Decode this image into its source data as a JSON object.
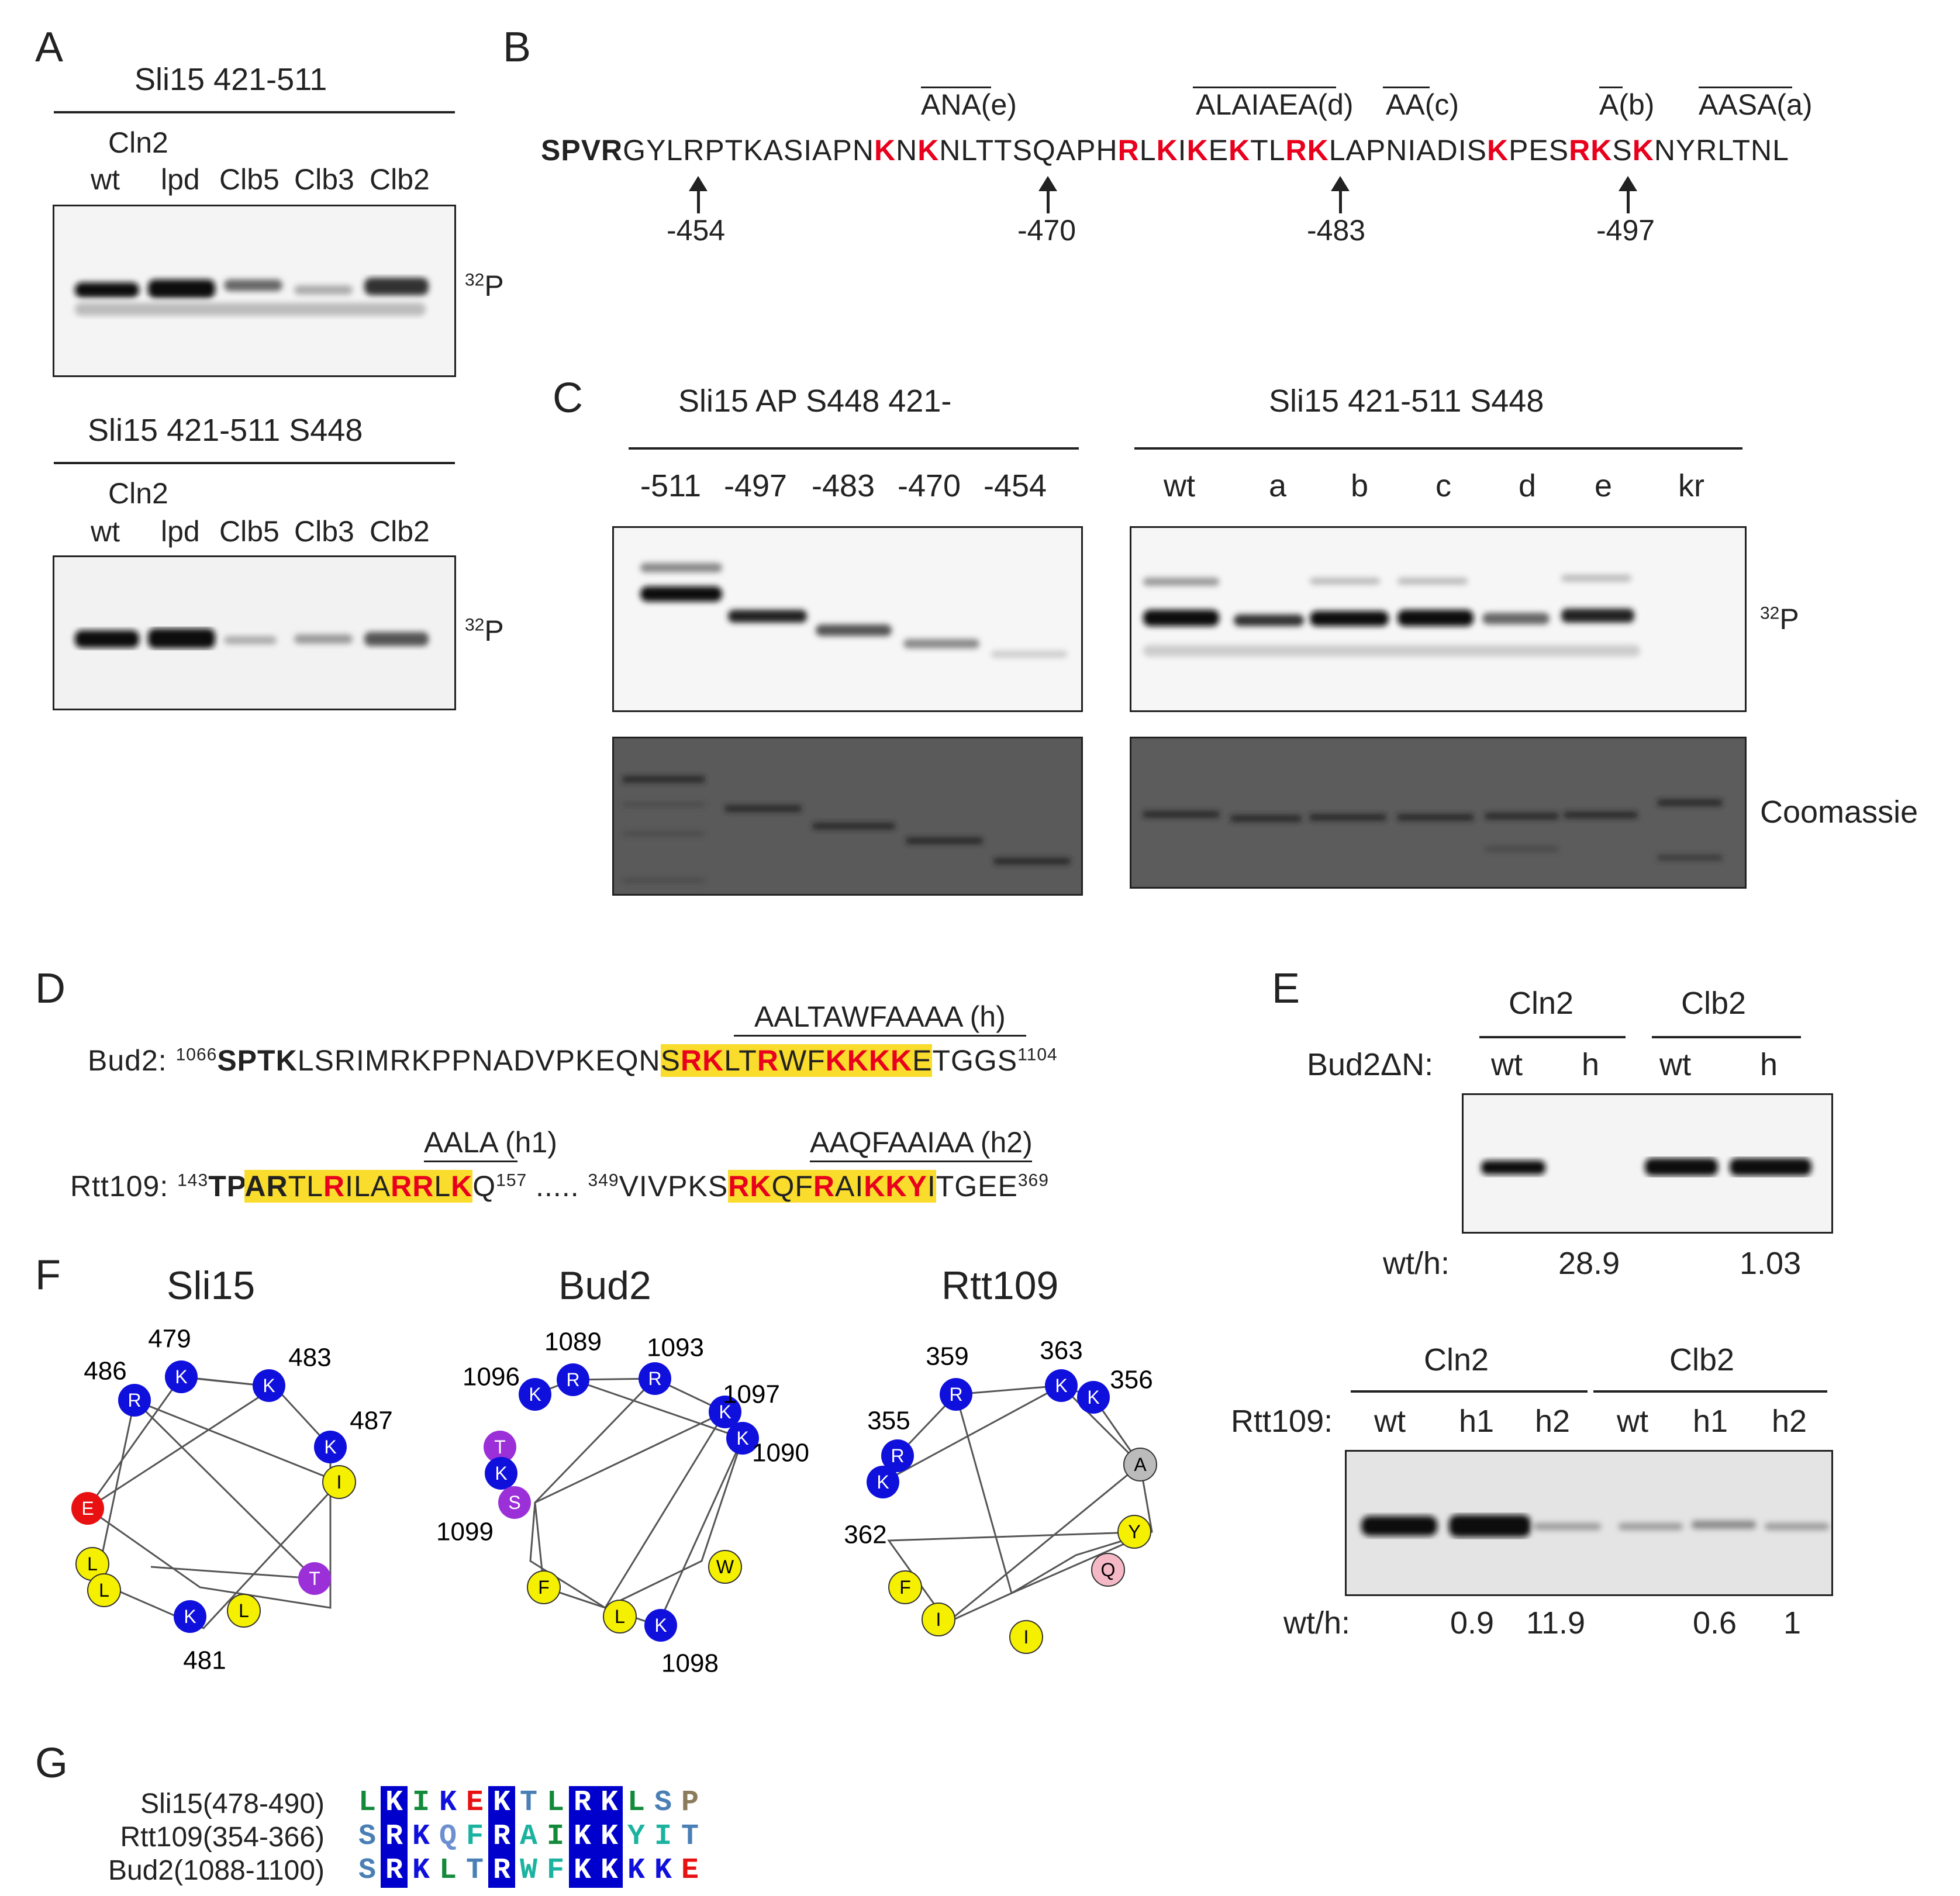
{
  "panels": {
    "A": "A",
    "B": "B",
    "C": "C",
    "D": "D",
    "E": "E",
    "F": "F",
    "G": "G"
  },
  "panelA": {
    "top_title": "Sli15 421-511",
    "bottom_title": "Sli15 421-511 S448",
    "cln2": "Cln2",
    "lanes": [
      "wt",
      "lpd",
      "Clb5",
      "Clb3",
      "Clb2"
    ],
    "p32_sup": "32",
    "p32": "P"
  },
  "panelB": {
    "seq_bold": "SPVR",
    "seq_parts": [
      "GYLRPTKASIAPN",
      "K",
      "N",
      "K",
      "NLTTSQAPH",
      "R",
      "L",
      "K",
      "I",
      "K",
      "E",
      "K",
      "TL",
      "RK",
      "LAPNIADIS",
      "K",
      "PES",
      "RK",
      "S",
      "K",
      "NYRLTNL"
    ],
    "mutants": [
      "ANA(e)",
      "ALAIAEA(d)",
      "AA(c)",
      "A(b)",
      "AASA(a)"
    ],
    "positions": [
      "-454",
      "-470",
      "-483",
      "-497"
    ]
  },
  "panelC": {
    "left_title": "Sli15 AP S448 421-",
    "left_lanes": [
      "-511",
      "-497",
      "-483",
      "-470",
      "-454"
    ],
    "right_title": "Sli15 421-511 S448",
    "right_lanes": [
      "wt",
      "a",
      "b",
      "c",
      "d",
      "e",
      "kr"
    ],
    "p32_sup": "32",
    "p32": "P",
    "stain": "Coomassie"
  },
  "panelD": {
    "bud2_mut": "AALTAWFAAAA (h)",
    "bud2_label": "Bud2:",
    "bud2_start": "1066",
    "bud2_bold": "SPTK",
    "bud2_a": "LSRIMRKPPNADVPKEQN",
    "bud2_hl": [
      "S",
      "RK",
      "LT",
      "R",
      "WF",
      "KKKK",
      "E"
    ],
    "bud2_tail": "TGGS",
    "bud2_end": "1104",
    "rtt_mut1": "AALA (h1)",
    "rtt_mut2": "AAQFAAIAA (h2)",
    "rtt_label": "Rtt109:",
    "rtt_start1": "143",
    "rtt_bold": "TP",
    "rtt_hl_bold": "AR",
    "rtt_hl1": [
      "TL",
      "R",
      "ILA",
      "RR",
      "L",
      "K"
    ],
    "rtt_q": "Q",
    "rtt_end1": "157",
    "dots": ".....",
    "rtt_start2": "349",
    "rtt_b": "VIVPKS",
    "rtt_hl2": [
      "RK",
      "QF",
      "R",
      "AI",
      "KKY",
      "I"
    ],
    "rtt_tail": "TGEE",
    "rtt_end2": "369"
  },
  "panelE": {
    "top_groups": [
      "Cln2",
      "Clb2"
    ],
    "top_row_label": "Bud2ΔN:",
    "top_lanes": [
      "wt",
      "h",
      "wt",
      "h"
    ],
    "ratio_label": "wt/h:",
    "top_ratios": [
      "28.9",
      "1.03"
    ],
    "bottom_groups": [
      "Cln2",
      "Clb2"
    ],
    "bottom_row_label": "Rtt109:",
    "bottom_lanes": [
      "wt",
      "h1",
      "h2",
      "wt",
      "h1",
      "h2"
    ],
    "bottom_ratios": [
      "0.9",
      "11.9",
      "0.6",
      "1"
    ]
  },
  "panelF": {
    "titles": [
      "Sli15",
      "Bud2",
      "Rtt109"
    ],
    "sli15_nums": [
      "479",
      "483",
      "486",
      "487",
      "481"
    ],
    "bud2_nums": [
      "1089",
      "1093",
      "1096",
      "1097",
      "1090",
      "1099",
      "1098"
    ],
    "rtt_nums": [
      "359",
      "363",
      "356",
      "355",
      "362"
    ],
    "colors": {
      "basic": "#1010dd",
      "acidic": "#e81010",
      "hydrophobic": "#f5f000",
      "polar": "#9b30d9",
      "gray": "#bbbbbb",
      "pink": "#f5b9c6"
    }
  },
  "panelG": {
    "rows": [
      {
        "label": "Sli15(478-490)",
        "res": [
          "L",
          "K",
          "I",
          "K",
          "E",
          "K",
          "T",
          "L",
          "R",
          "K",
          "L",
          "S",
          "P"
        ]
      },
      {
        "label": "Rtt109(354-366)",
        "res": [
          "S",
          "R",
          "K",
          "Q",
          "F",
          "R",
          "A",
          "I",
          "K",
          "K",
          "Y",
          "I",
          "T"
        ]
      },
      {
        "label": "Bud2(1088-1100)",
        "res": [
          "S",
          "R",
          "K",
          "L",
          "T",
          "R",
          "W",
          "F",
          "K",
          "K",
          "K",
          "K",
          "E"
        ]
      }
    ]
  }
}
